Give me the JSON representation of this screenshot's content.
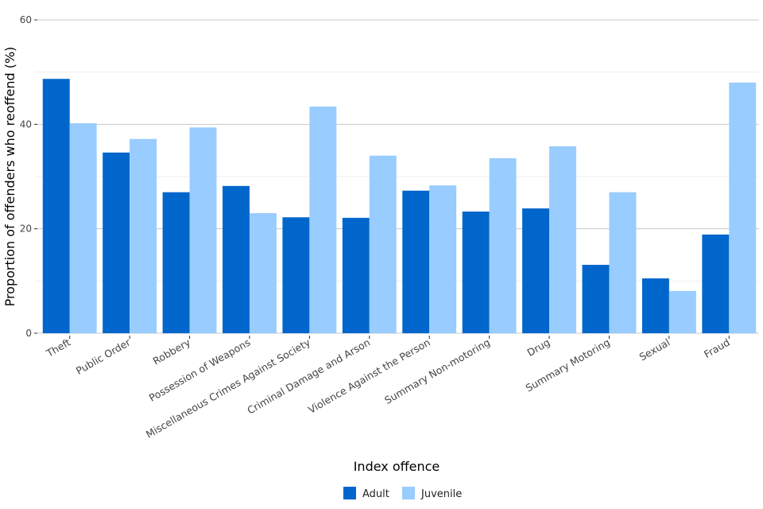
{
  "chart_data": {
    "type": "bar",
    "title": "",
    "xlabel": "Index offence",
    "ylabel": "Proportion of offenders who reoffend (%)",
    "ylim": [
      0,
      60
    ],
    "yticks": [
      0,
      20,
      40,
      60
    ],
    "grid": true,
    "legend_position": "bottom",
    "categories": [
      "Theft",
      "Public Order",
      "Robbery",
      "Possession of Weapons",
      "Miscellaneous Crimes Against Society",
      "Criminal Damage and Arson",
      "Violence Against the Person",
      "Summary Non-motoring",
      "Drug",
      "Summary Motoring",
      "Sexual",
      "Fraud"
    ],
    "series": [
      {
        "name": "Adult",
        "color": "#0066cc",
        "values": [
          48.7,
          34.6,
          27.0,
          28.2,
          22.2,
          22.1,
          27.3,
          23.3,
          23.9,
          13.1,
          10.5,
          18.9
        ]
      },
      {
        "name": "Juvenile",
        "color": "#99ccff",
        "values": [
          40.2,
          37.2,
          39.4,
          23.0,
          43.4,
          34.0,
          28.3,
          33.5,
          35.8,
          27.0,
          8.1,
          48.0
        ]
      }
    ]
  }
}
